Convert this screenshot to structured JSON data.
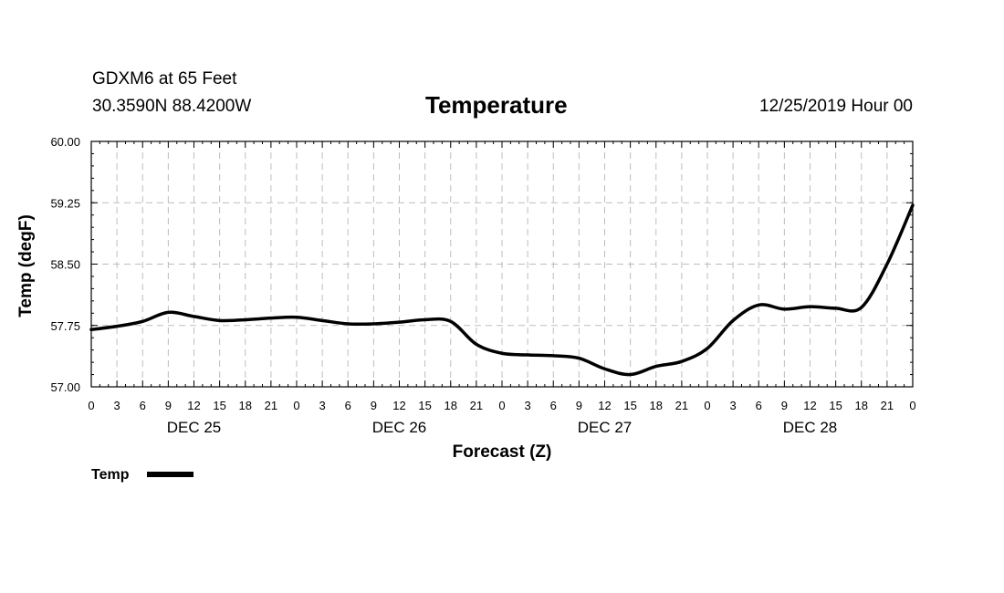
{
  "header": {
    "station": "GDXM6 at 65 Feet",
    "coordinates": "30.3590N 88.4200W",
    "title": "Temperature",
    "timestamp": "12/25/2019 Hour 00"
  },
  "chart_data": {
    "type": "line",
    "title": "Temperature",
    "xlabel": "Forecast (Z)",
    "ylabel": "Temp (degF)",
    "ylim": [
      57.0,
      60.0
    ],
    "xlim": [
      0,
      96
    ],
    "yticks": [
      57.0,
      57.75,
      58.5,
      59.25,
      60.0
    ],
    "ytick_labels": [
      "57.00",
      "57.75",
      "58.50",
      "59.25",
      "60.00"
    ],
    "xticks": [
      0,
      3,
      6,
      9,
      12,
      15,
      18,
      21,
      24,
      27,
      30,
      33,
      36,
      39,
      42,
      45,
      48,
      51,
      54,
      57,
      60,
      63,
      66,
      69,
      72,
      75,
      78,
      81,
      84,
      87,
      90,
      93,
      96
    ],
    "xtick_labels": [
      "0",
      "3",
      "6",
      "9",
      "12",
      "15",
      "18",
      "21",
      "0",
      "3",
      "6",
      "9",
      "12",
      "15",
      "18",
      "21",
      "0",
      "3",
      "6",
      "9",
      "12",
      "15",
      "18",
      "21",
      "0",
      "3",
      "6",
      "9",
      "12",
      "15",
      "18",
      "21",
      "0"
    ],
    "day_labels": [
      {
        "label": "DEC 25",
        "x": 12
      },
      {
        "label": "DEC 26",
        "x": 36
      },
      {
        "label": "DEC 27",
        "x": 60
      },
      {
        "label": "DEC 28",
        "x": 84
      }
    ],
    "grid": true,
    "legend": {
      "position": "bottom-left",
      "entries": [
        "Temp"
      ]
    },
    "series": [
      {
        "name": "Temp",
        "color": "#000000",
        "x": [
          0,
          3,
          6,
          9,
          12,
          15,
          18,
          21,
          24,
          27,
          30,
          33,
          36,
          39,
          42,
          45,
          48,
          51,
          54,
          57,
          60,
          63,
          66,
          69,
          72,
          75,
          78,
          81,
          84,
          87,
          90,
          93,
          96
        ],
        "values": [
          57.7,
          57.74,
          57.8,
          57.91,
          57.86,
          57.81,
          57.82,
          57.84,
          57.85,
          57.81,
          57.77,
          57.77,
          57.79,
          57.82,
          57.8,
          57.52,
          57.41,
          57.39,
          57.38,
          57.35,
          57.22,
          57.15,
          57.25,
          57.31,
          57.47,
          57.81,
          58.0,
          57.95,
          57.98,
          57.96,
          57.97,
          58.5,
          59.22
        ]
      }
    ]
  }
}
